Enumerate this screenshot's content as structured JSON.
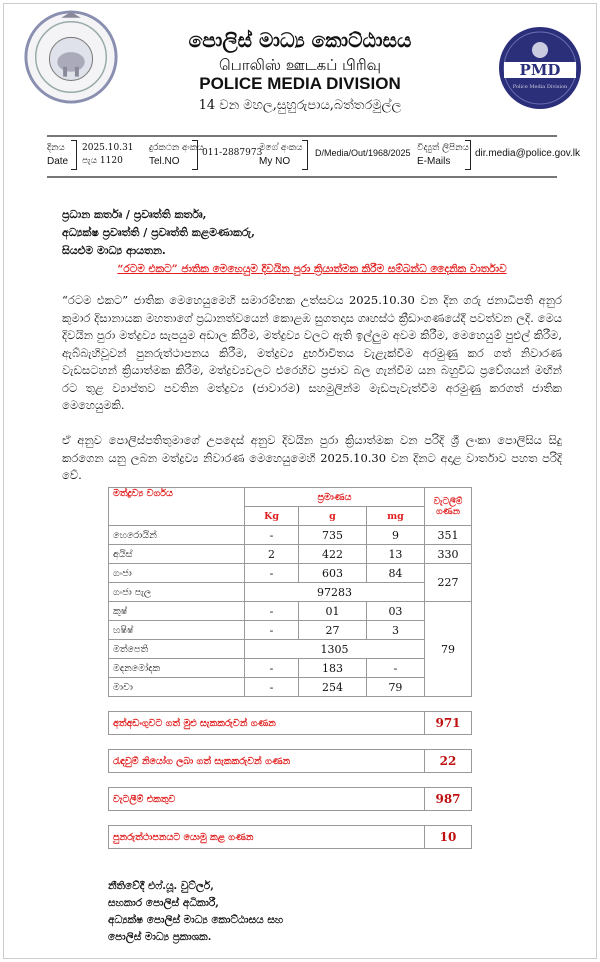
{
  "header": {
    "title_sinhala": "පොලිස් මාධ්‍ය කොට්ඨාසය",
    "title_tamil": "பொலிஸ் ஊடகப் பிரிவு",
    "title_english": "POLICE MEDIA DIVISION",
    "address": "14 වන මහල,සුහුරුපාය,බත්තරමුල්ල",
    "right_logo_text": "PMD",
    "right_logo_subtext": "Police Media Division"
  },
  "info": {
    "date_label_si": "දිනය",
    "date_label_en": "Date",
    "date": "2025.10.31",
    "time": "පැය 1120",
    "tel_label_si": "දුරකථන අංකය",
    "tel_label_en": "Tel.NO",
    "tel": "011-2887973",
    "myno_label_si": "මගේ අංකය",
    "myno_label_en": "My NO",
    "myno": "D/Media/Out/1968/2025",
    "email_label_si": "විද්‍යුත් ලිපිනය",
    "email_label_en": "E-Mails",
    "email": "dir.media@police.gov.lk"
  },
  "addressees": [
    "ප්‍රධාන කර්තෘ / ප්‍රවෘත්ති කර්තෘ,",
    "අධ්‍යක්ෂ ප්‍රවෘත්ති / ප්‍රවෘත්ති කළමණාකරු,",
    "සියළුම මාධ්‍ය ආයතන."
  ],
  "subject": "“රටම එකට” ජාතික මෙහෙයුම දිවයින පුරා ක්‍රියාත්මක කිරීම සම්බන්ධ දෛනික වාර්තාව",
  "paragraphs": [
    "“රටම එකට” ජාතික මෙහෙයුමෙහි සමාරම්භක උත්සවය 2025.10.30 වන දින ගරු ජනාධිපති අනුර කුමාර දිසානායක මහතාගේ ප්‍රධානත්වයෙන් කොළඹ සුගතදාස ගෘහස්ථ ක්‍රීඩාංගණයේදී පවත්වන ලදි. මෙය දිවයින පුරා මත්ද්‍රව්‍ය සැපයුම අඩාල කිරීම, මත්ද්‍රව්‍ය වලට ඇති ඉල්ලුම අවම කිරීම, මෙහෙයුම් පුළුල් කිරීම, ඇබ්බැහිවූවන් පුනරුත්ථාපනය කිරීම, මත්ද්‍රව්‍ය දුර්භාවිතය වැළැක්වීම අරමුණු කර ගත් නිවාරණ වැඩසටහන් ක්‍රියාත්මක කිරීම, මත්ද්‍රව්‍යවලට එරෙහිව ප්‍රජාව බල ගැන්වීම යන බහුවිධ ප්‍රවේශයන් මඟින් රට තුළ ව්‍යාප්තව පවතින මත්ද්‍රව්‍ය (ජාවාරම) සහමුලින්ම මැඩපැවැත්වීම අරමුණු කරගත් ජාතික මෙහෙයුමකි.",
    "ඒ අනුව පොලිස්පතිතුමාගේ උපදෙස් අනුව දිවයින පුරා ක්‍රියාත්මක වන පරිදි ශ්‍රී ලංකා පොලිසිය සිදු කරගෙන යනු ලබන මත්ද්‍රව්‍ය නිවාරණ මෙහෙයුමෙහි 2025.10.30 වන දිනට අදාළ වාර්තාව පහත පරිදි වේ."
  ],
  "table": {
    "headers": {
      "type": "මත්ද්‍රව්‍ය වර්ගය",
      "quantity": "ප්‍රමාණය",
      "kg": "Kg",
      "g": "g",
      "mg": "mg",
      "raids": "වැටලීම් ගණන"
    },
    "rows": [
      {
        "name": "හෙරොයින්",
        "kg": "-",
        "g": "735",
        "mg": "9",
        "raids": "351"
      },
      {
        "name": "අයිස්",
        "kg": "2",
        "g": "422",
        "mg": "13",
        "raids": "330"
      },
      {
        "name": "ගංජා",
        "kg": "-",
        "g": "603",
        "mg": "84",
        "raids": "227"
      },
      {
        "name": "ගංජා පැල",
        "merged": "97283"
      },
      {
        "name": "කුෂ්",
        "kg": "-",
        "g": "01",
        "mg": "03",
        "raids": "79"
      },
      {
        "name": "හෂිෂ්",
        "kg": "-",
        "g": "27",
        "mg": "3"
      },
      {
        "name": "මත්පෙති",
        "merged": "1305"
      },
      {
        "name": "මදනමෝදක",
        "kg": "-",
        "g": "183",
        "mg": "-"
      },
      {
        "name": "මාවා",
        "kg": "-",
        "g": "254",
        "mg": "79"
      }
    ],
    "summary": [
      {
        "label": "අත්අඩංගුවට ගත් මුළු සැකකරුවන් ගණන",
        "value": "971"
      },
      {
        "label": "රැඳවුම් නියෝග ලබා ගත් සැකකරුවන් ගණන",
        "value": "22"
      },
      {
        "label": "වැටලීම් එකතුව",
        "value": "987"
      },
      {
        "label": "පුනරුත්ථාපනයට යොමු කළ ගණන",
        "value": "10"
      }
    ]
  },
  "signature": [
    "නීතිවේදී එෆ්.යූ. වුට්ලර්,",
    "සහකාර පොලිස් අධිකාරී,",
    "අධ්‍යක්ෂ පොලිස් මාධ්‍ය කොට්ඨාසය සහ",
    "පොලිස් මාධ්‍ය ප්‍රකාශක."
  ],
  "colors": {
    "accent_red": "#e02020",
    "pmd_navy": "#2b2f7a"
  }
}
